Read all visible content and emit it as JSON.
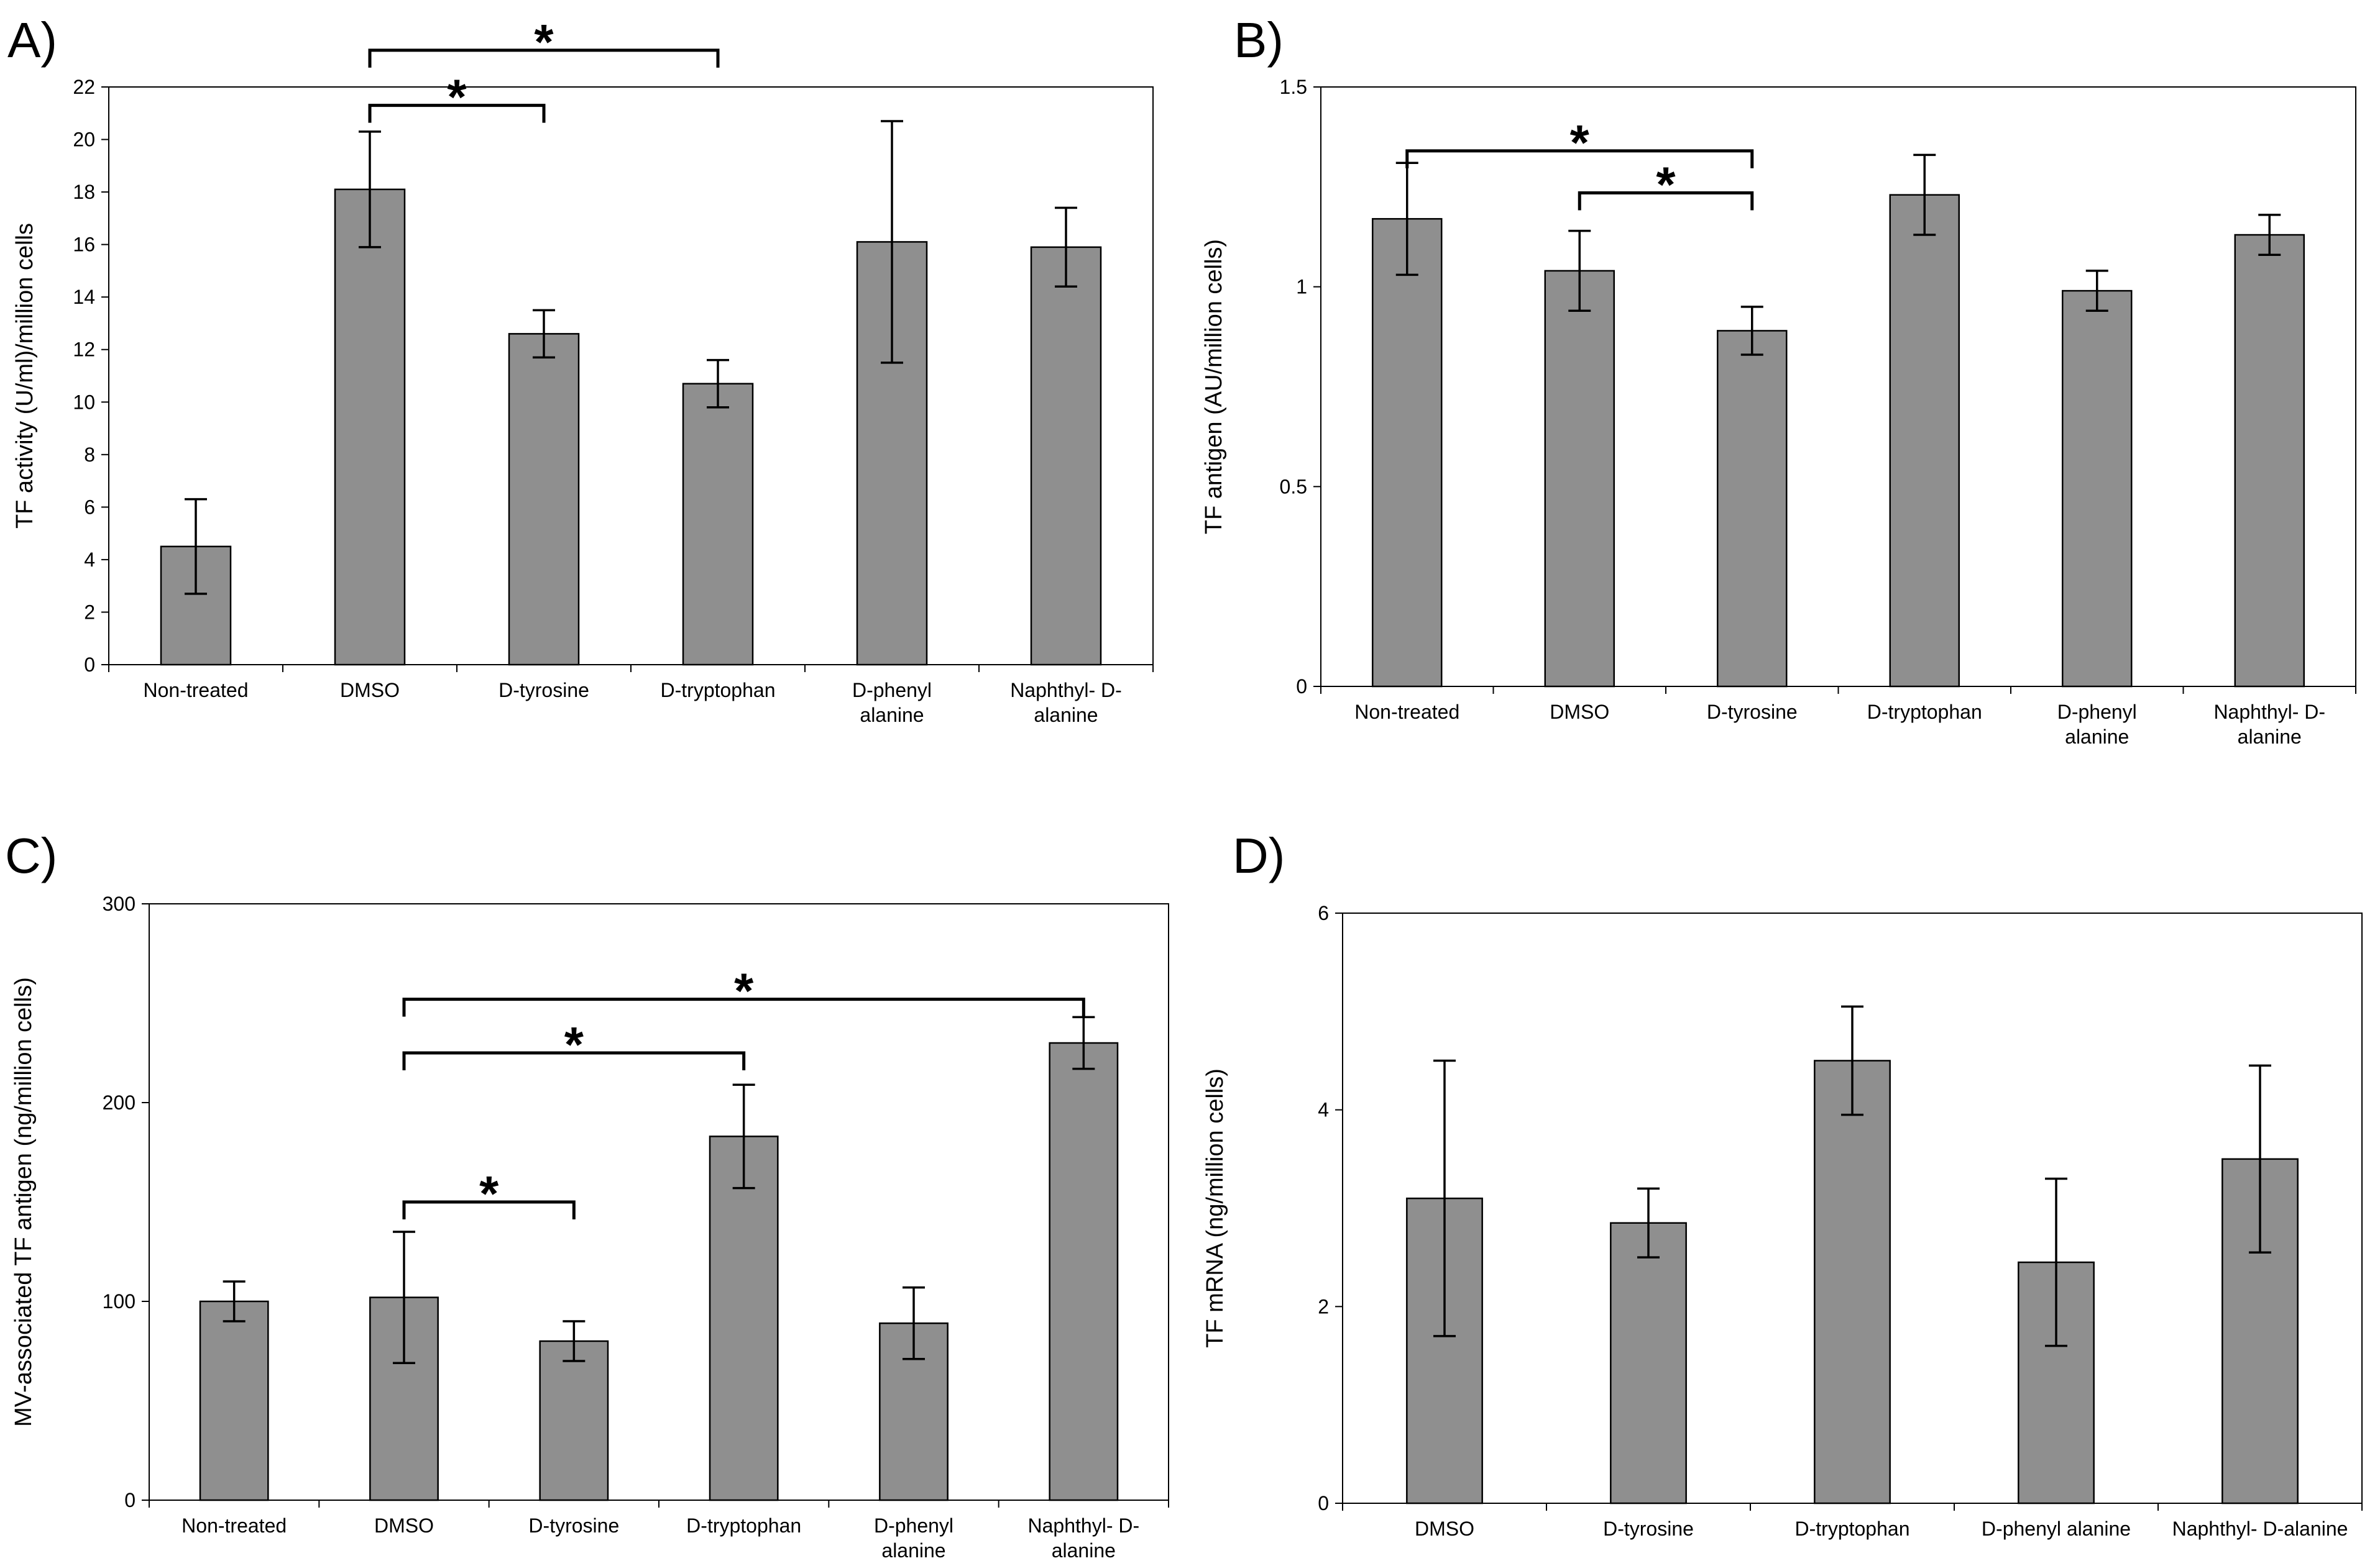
{
  "figure": {
    "background": "#ffffff",
    "bar_fill": "#8f8f8f",
    "bar_stroke": "#000000",
    "axis_color": "#000000",
    "text_color": "#000000",
    "significance_symbol": "*"
  },
  "chart_data": [
    {
      "id": "A",
      "panel_label": "A)",
      "type": "bar",
      "title": "",
      "xlabel": "",
      "ylabel": "TF activity (U/ml)/million cells",
      "ylim": [
        0,
        22
      ],
      "yticks": [
        0,
        2,
        4,
        6,
        8,
        10,
        12,
        14,
        16,
        18,
        20,
        22
      ],
      "grid": false,
      "legend": false,
      "categories": [
        "Non-treated",
        "DMSO",
        "D-tyrosine",
        "D-tryptophan",
        "D-phenyl\nalanine",
        "Naphthyl- D-\nalanine"
      ],
      "values": [
        4.5,
        18.1,
        12.6,
        10.7,
        16.1,
        15.9
      ],
      "errors": [
        1.8,
        2.2,
        0.9,
        0.9,
        4.6,
        1.5
      ],
      "significance": [
        {
          "from": 1,
          "to": 2,
          "at": 21.3,
          "label": "*"
        },
        {
          "from": 1,
          "to": 3,
          "at": 23.4,
          "label": "*"
        }
      ]
    },
    {
      "id": "B",
      "panel_label": "B)",
      "type": "bar",
      "title": "",
      "xlabel": "",
      "ylabel": "TF antigen (AU/million cells)",
      "ylim": [
        0,
        1.5
      ],
      "yticks": [
        0,
        0.5,
        1,
        1.5
      ],
      "grid": false,
      "legend": false,
      "categories": [
        "Non-treated",
        "DMSO",
        "D-tyrosine",
        "D-tryptophan",
        "D-phenyl\nalanine",
        "Naphthyl- D-\nalanine"
      ],
      "values": [
        1.17,
        1.04,
        0.89,
        1.23,
        0.99,
        1.13
      ],
      "errors": [
        0.14,
        0.1,
        0.06,
        0.1,
        0.05,
        0.05
      ],
      "significance": [
        {
          "from": 0,
          "to": 2,
          "at": 1.34,
          "label": "*"
        },
        {
          "from": 1,
          "to": 2,
          "at": 1.235,
          "label": "*"
        }
      ]
    },
    {
      "id": "C",
      "panel_label": "C)",
      "type": "bar",
      "title": "",
      "xlabel": "",
      "ylabel": "MV-associated TF antigen (ng/million cells)",
      "ylim": [
        0,
        300
      ],
      "yticks": [
        0,
        100,
        200,
        300
      ],
      "grid": false,
      "legend": false,
      "categories": [
        "Non-treated",
        "DMSO",
        "D-tyrosine",
        "D-tryptophan",
        "D-phenyl\nalanine",
        "Naphthyl- D-\nalanine"
      ],
      "values": [
        100,
        102,
        80,
        183,
        89,
        230
      ],
      "errors": [
        10,
        33,
        10,
        26,
        18,
        13
      ],
      "significance": [
        {
          "from": 1,
          "to": 2,
          "at": 150,
          "label": "*"
        },
        {
          "from": 1,
          "to": 3,
          "at": 225,
          "label": "*"
        },
        {
          "from": 1,
          "to": 5,
          "at": 252,
          "label": "*"
        }
      ]
    },
    {
      "id": "D",
      "panel_label": "D)",
      "type": "bar",
      "title": "",
      "xlabel": "",
      "ylabel": "TF mRNA (ng/million cells)",
      "ylim": [
        0,
        6
      ],
      "yticks": [
        0,
        2,
        4,
        6
      ],
      "grid": false,
      "legend": false,
      "categories": [
        "DMSO",
        "D-tyrosine",
        "D-tryptophan",
        "D-phenyl alanine",
        "Naphthyl- D-alanine"
      ],
      "values": [
        3.1,
        2.85,
        4.5,
        2.45,
        3.5
      ],
      "errors": [
        1.4,
        0.35,
        0.55,
        0.85,
        0.95
      ],
      "significance": []
    }
  ]
}
